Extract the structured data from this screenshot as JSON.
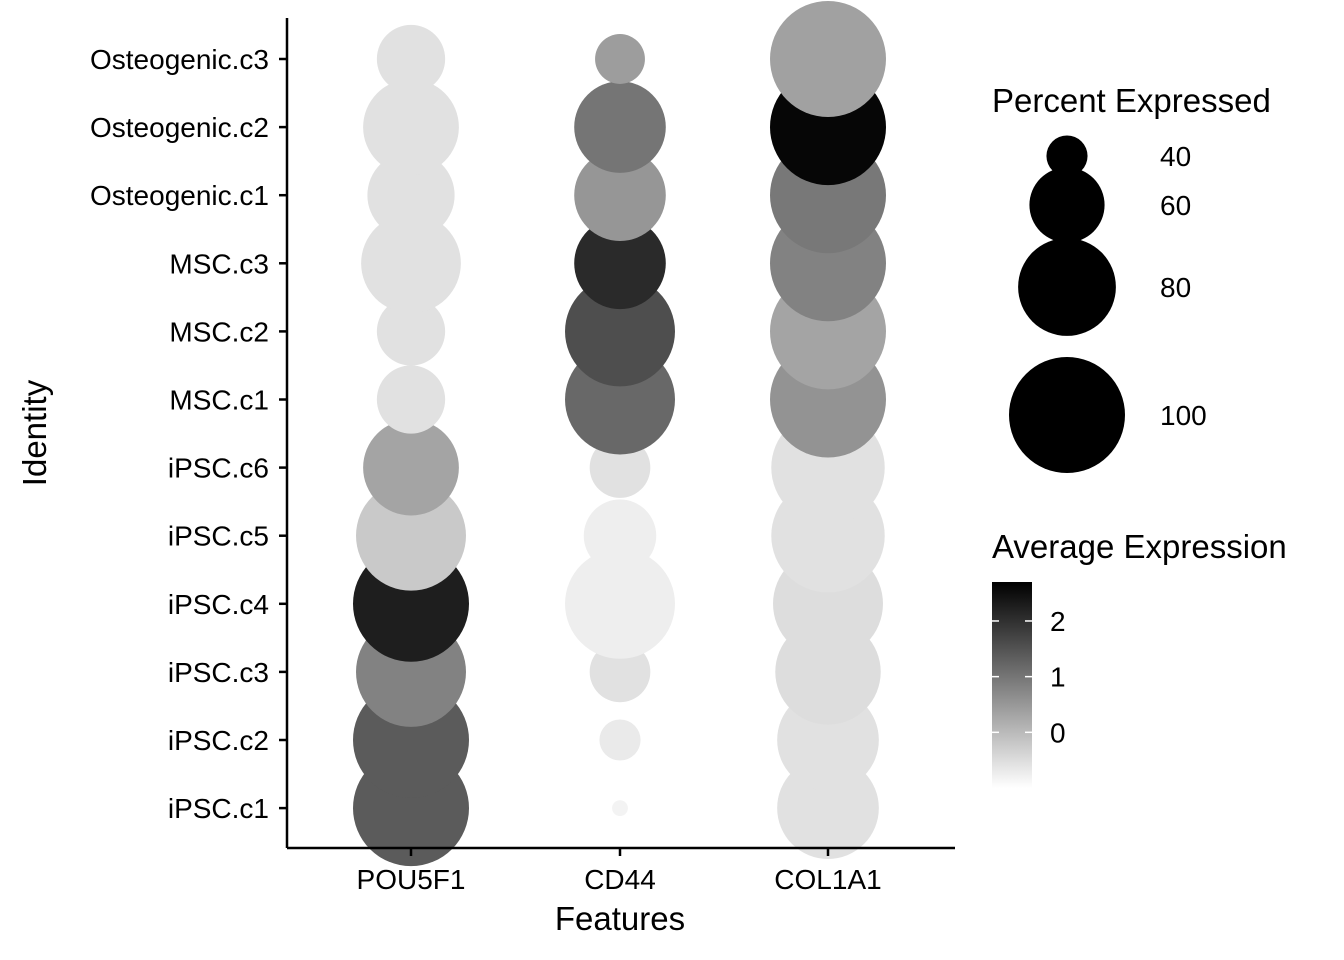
{
  "chart_data": {
    "type": "dotplot",
    "x_title": "Features",
    "y_title": "Identity",
    "features": [
      "POU5F1",
      "CD44",
      "COL1A1"
    ],
    "identities": [
      "iPSC.c1",
      "iPSC.c2",
      "iPSC.c3",
      "iPSC.c4",
      "iPSC.c5",
      "iPSC.c6",
      "MSC.c1",
      "MSC.c2",
      "MSC.c3",
      "Osteogenic.c1",
      "Osteogenic.c2",
      "Osteogenic.c3"
    ],
    "points": [
      {
        "feature": "POU5F1",
        "identity": "iPSC.c1",
        "pct": 100,
        "avg_exp": 1.2
      },
      {
        "feature": "POU5F1",
        "identity": "iPSC.c2",
        "pct": 100,
        "avg_exp": 1.2
      },
      {
        "feature": "POU5F1",
        "identity": "iPSC.c3",
        "pct": 93,
        "avg_exp": 0.6
      },
      {
        "feature": "POU5F1",
        "identity": "iPSC.c4",
        "pct": 100,
        "avg_exp": 2.2
      },
      {
        "feature": "POU5F1",
        "identity": "iPSC.c5",
        "pct": 93,
        "avg_exp": -0.4
      },
      {
        "feature": "POU5F1",
        "identity": "iPSC.c6",
        "pct": 78,
        "avg_exp": 0.1
      },
      {
        "feature": "POU5F1",
        "identity": "MSC.c1",
        "pct": 55,
        "avg_exp": -0.7
      },
      {
        "feature": "POU5F1",
        "identity": "MSC.c2",
        "pct": 55,
        "avg_exp": -0.7
      },
      {
        "feature": "POU5F1",
        "identity": "MSC.c3",
        "pct": 82,
        "avg_exp": -0.7
      },
      {
        "feature": "POU5F1",
        "identity": "Osteogenic.c1",
        "pct": 70,
        "avg_exp": -0.7
      },
      {
        "feature": "POU5F1",
        "identity": "Osteogenic.c2",
        "pct": 78,
        "avg_exp": -0.7
      },
      {
        "feature": "POU5F1",
        "identity": "Osteogenic.c3",
        "pct": 55,
        "avg_exp": -0.7
      },
      {
        "feature": "CD44",
        "identity": "iPSC.c1",
        "pct": 33,
        "avg_exp": -0.9
      },
      {
        "feature": "CD44",
        "identity": "iPSC.c2",
        "pct": 40,
        "avg_exp": -0.8
      },
      {
        "feature": "CD44",
        "identity": "iPSC.c3",
        "pct": 50,
        "avg_exp": -0.7
      },
      {
        "feature": "CD44",
        "identity": "iPSC.c4",
        "pct": 93,
        "avg_exp": -0.85
      },
      {
        "feature": "CD44",
        "identity": "iPSC.c5",
        "pct": 58,
        "avg_exp": -0.85
      },
      {
        "feature": "CD44",
        "identity": "iPSC.c6",
        "pct": 50,
        "avg_exp": -0.7
      },
      {
        "feature": "CD44",
        "identity": "MSC.c1",
        "pct": 93,
        "avg_exp": 1.0
      },
      {
        "feature": "CD44",
        "identity": "MSC.c2",
        "pct": 93,
        "avg_exp": 1.4
      },
      {
        "feature": "CD44",
        "identity": "MSC.c3",
        "pct": 74,
        "avg_exp": 2.0
      },
      {
        "feature": "CD44",
        "identity": "Osteogenic.c1",
        "pct": 74,
        "avg_exp": 0.3
      },
      {
        "feature": "CD44",
        "identity": "Osteogenic.c2",
        "pct": 74,
        "avg_exp": 0.8
      },
      {
        "feature": "CD44",
        "identity": "Osteogenic.c3",
        "pct": 44,
        "avg_exp": 0.2
      },
      {
        "feature": "COL1A1",
        "identity": "iPSC.c1",
        "pct": 84,
        "avg_exp": -0.7
      },
      {
        "feature": "COL1A1",
        "identity": "iPSC.c2",
        "pct": 84,
        "avg_exp": -0.7
      },
      {
        "feature": "COL1A1",
        "identity": "iPSC.c3",
        "pct": 88,
        "avg_exp": -0.65
      },
      {
        "feature": "COL1A1",
        "identity": "iPSC.c4",
        "pct": 93,
        "avg_exp": -0.65
      },
      {
        "feature": "COL1A1",
        "identity": "iPSC.c5",
        "pct": 97,
        "avg_exp": -0.7
      },
      {
        "feature": "COL1A1",
        "identity": "iPSC.c6",
        "pct": 97,
        "avg_exp": -0.7
      },
      {
        "feature": "COL1A1",
        "identity": "MSC.c1",
        "pct": 100,
        "avg_exp": 0.35
      },
      {
        "feature": "COL1A1",
        "identity": "MSC.c2",
        "pct": 100,
        "avg_exp": 0.1
      },
      {
        "feature": "COL1A1",
        "identity": "MSC.c3",
        "pct": 100,
        "avg_exp": 0.6
      },
      {
        "feature": "COL1A1",
        "identity": "Osteogenic.c1",
        "pct": 100,
        "avg_exp": 0.75
      },
      {
        "feature": "COL1A1",
        "identity": "Osteogenic.c2",
        "pct": 100,
        "avg_exp": 2.6
      },
      {
        "feature": "COL1A1",
        "identity": "Osteogenic.c3",
        "pct": 100,
        "avg_exp": 0.15
      }
    ],
    "legend_size": {
      "title": "Percent Expressed",
      "entries": [
        {
          "label": "40",
          "pct": 40
        },
        {
          "label": "60",
          "pct": 60
        },
        {
          "label": "80",
          "pct": 80
        },
        {
          "label": "100",
          "pct": 100
        }
      ]
    },
    "legend_color": {
      "title": "Average Expression",
      "ticks": [
        {
          "label": "0",
          "value": 0
        },
        {
          "label": "1",
          "value": 1
        },
        {
          "label": "2",
          "value": 2
        }
      ],
      "range": [
        -1.0,
        2.7
      ],
      "color_low": "#ffffff",
      "color_high": "#000000"
    },
    "pct_range": [
      32,
      100
    ]
  }
}
